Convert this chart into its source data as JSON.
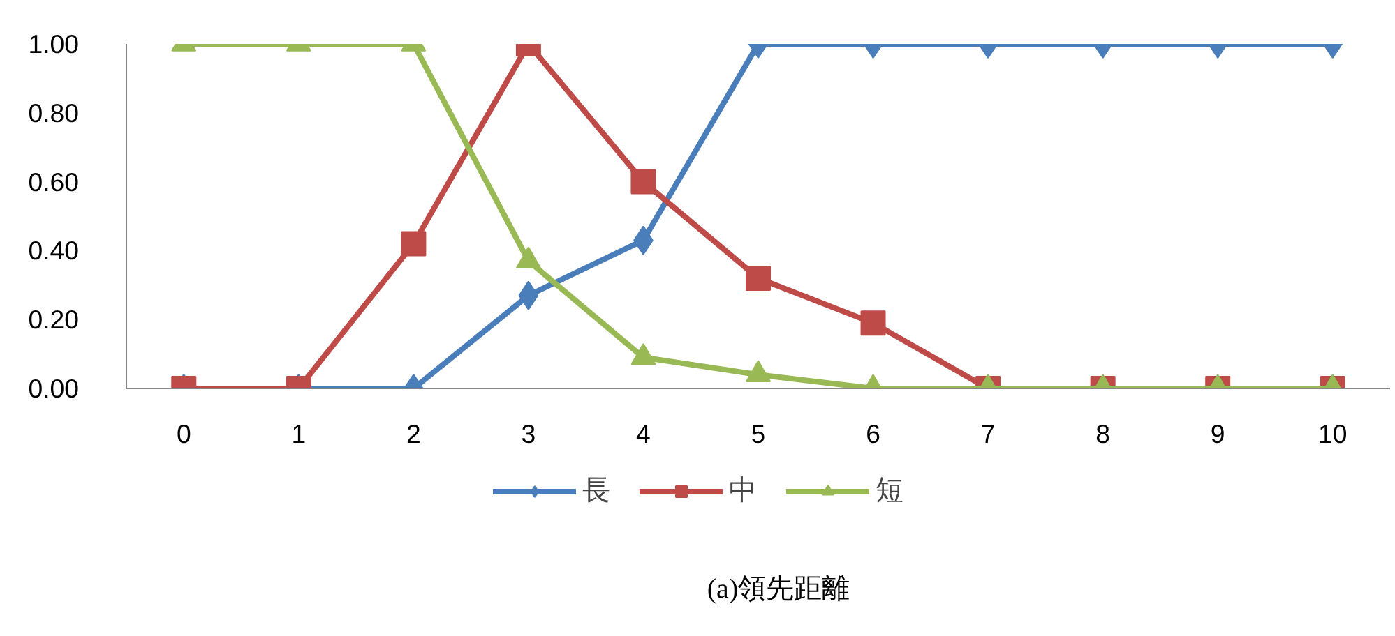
{
  "chart_data": {
    "type": "line",
    "title": "(a)領先距離",
    "categories": [
      "0",
      "1",
      "2",
      "3",
      "4",
      "5",
      "6",
      "7",
      "8",
      "9",
      "10"
    ],
    "ylim": [
      0,
      1
    ],
    "yticks": [
      {
        "value": 0,
        "label": "0.00"
      },
      {
        "value": 0.2,
        "label": "0.20"
      },
      {
        "value": 0.4,
        "label": "0.40"
      },
      {
        "value": 0.6,
        "label": "0.60"
      },
      {
        "value": 0.8,
        "label": "0.80"
      },
      {
        "value": 1,
        "label": "1.00"
      }
    ],
    "grid": false,
    "legend": "bottom",
    "line_style": "solid",
    "series": [
      {
        "name": "長",
        "color": "#4a7ebb",
        "marker": "diamond",
        "values": [
          0,
          0,
          0,
          0.27,
          0.43,
          1,
          1,
          1,
          1,
          1,
          1
        ]
      },
      {
        "name": "中",
        "color": "#be4b48",
        "marker": "square",
        "values": [
          0,
          0,
          0.42,
          1,
          0.6,
          0.32,
          0.19,
          0,
          0,
          0,
          0
        ]
      },
      {
        "name": "短",
        "color": "#98b954",
        "marker": "triangle",
        "values": [
          1,
          1,
          1,
          0.37,
          0.09,
          0.04,
          0,
          0,
          0,
          0,
          0
        ]
      }
    ]
  }
}
